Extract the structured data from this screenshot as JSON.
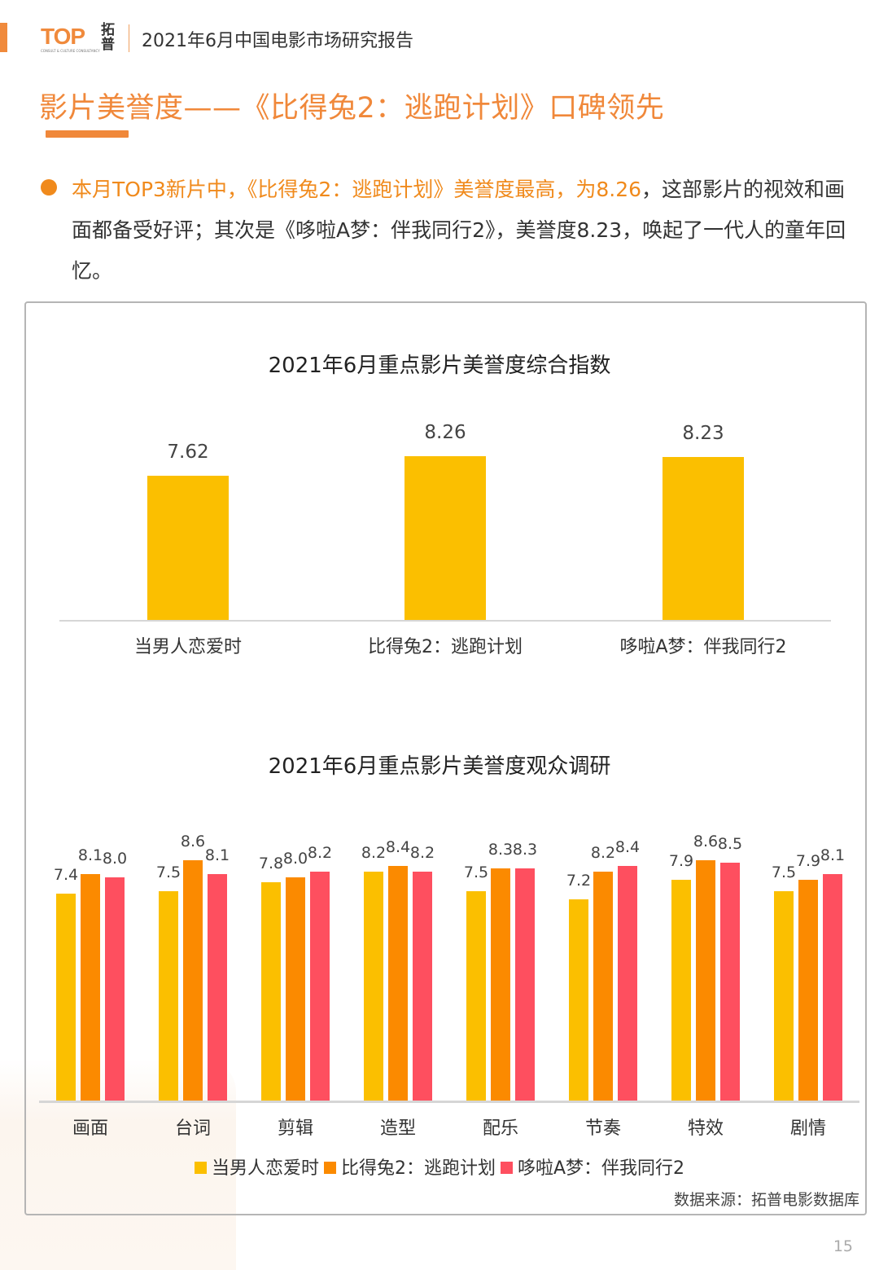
{
  "header": {
    "logo_text": "TOP",
    "logo_subtext": "CONSULT & CULTURE CONSULTANCY",
    "logo_cn": "拓普",
    "report_title": "2021年6月中国电影市场研究报告"
  },
  "page": {
    "title": "影片美誉度——《比得兔2：逃跑计划》口碑领先",
    "summary_highlight": "本月TOP3新片中，《比得兔2：逃跑计划》美誉度最高，为8.26",
    "summary_rest": "，这部影片的视效和画面都备受好评；其次是《哆啦A梦：伴我同行2》，美誉度8.23，唤起了一代人的童年回忆。",
    "source": "数据来源：拓普电影数据库",
    "page_number": "15"
  },
  "colors": {
    "accent": "#f0883a",
    "series": [
      "#fbbf00",
      "#fb8a00",
      "#fe4f5f"
    ],
    "axis": "#d6d6d6"
  },
  "chart_data": [
    {
      "type": "bar",
      "title": "2021年6月重点影片美誉度综合指数",
      "categories": [
        "当男人恋爱时",
        "比得兔2：逃跑计划",
        "哆啦A梦：伴我同行2"
      ],
      "values": [
        7.62,
        8.26,
        8.23
      ],
      "value_labels": [
        "7.62",
        "8.26",
        "8.23"
      ],
      "xlabel": "",
      "ylabel": "",
      "ylim": [
        2.9,
        8.5
      ],
      "grid": false,
      "color": "#fbbf00"
    },
    {
      "type": "bar",
      "title": "2021年6月重点影片美誉度观众调研",
      "categories": [
        "画面",
        "台词",
        "剪辑",
        "造型",
        "配乐",
        "节奏",
        "特效",
        "剧情"
      ],
      "series": [
        {
          "name": "当男人恋爱时",
          "color": "#fbbf00",
          "values": [
            7.4,
            7.5,
            7.8,
            8.2,
            7.5,
            7.2,
            7.9,
            7.5
          ],
          "labels": [
            "7.4",
            "7.5",
            "7.8",
            "8.2",
            "7.5",
            "7.2",
            "7.9",
            "7.5"
          ]
        },
        {
          "name": "比得兔2：逃跑计划",
          "color": "#fb8a00",
          "values": [
            8.1,
            8.6,
            8.0,
            8.4,
            8.3,
            8.2,
            8.6,
            7.9
          ],
          "labels": [
            "8.1",
            "8.6",
            "8.0",
            "8.4",
            "8.3",
            "8.2",
            "8.6",
            "7.9"
          ]
        },
        {
          "name": "哆啦A梦：伴我同行2",
          "color": "#fe4f5f",
          "values": [
            8.0,
            8.1,
            8.2,
            8.2,
            8.3,
            8.4,
            8.5,
            8.1
          ],
          "labels": [
            "8.0",
            "8.1",
            "8.2",
            "8.2",
            "8.3",
            "8.4",
            "8.5",
            "8.1"
          ]
        }
      ],
      "xlabel": "",
      "ylabel": "",
      "ylim": [
        0,
        9
      ],
      "grid": false,
      "legend_position": "bottom"
    }
  ]
}
